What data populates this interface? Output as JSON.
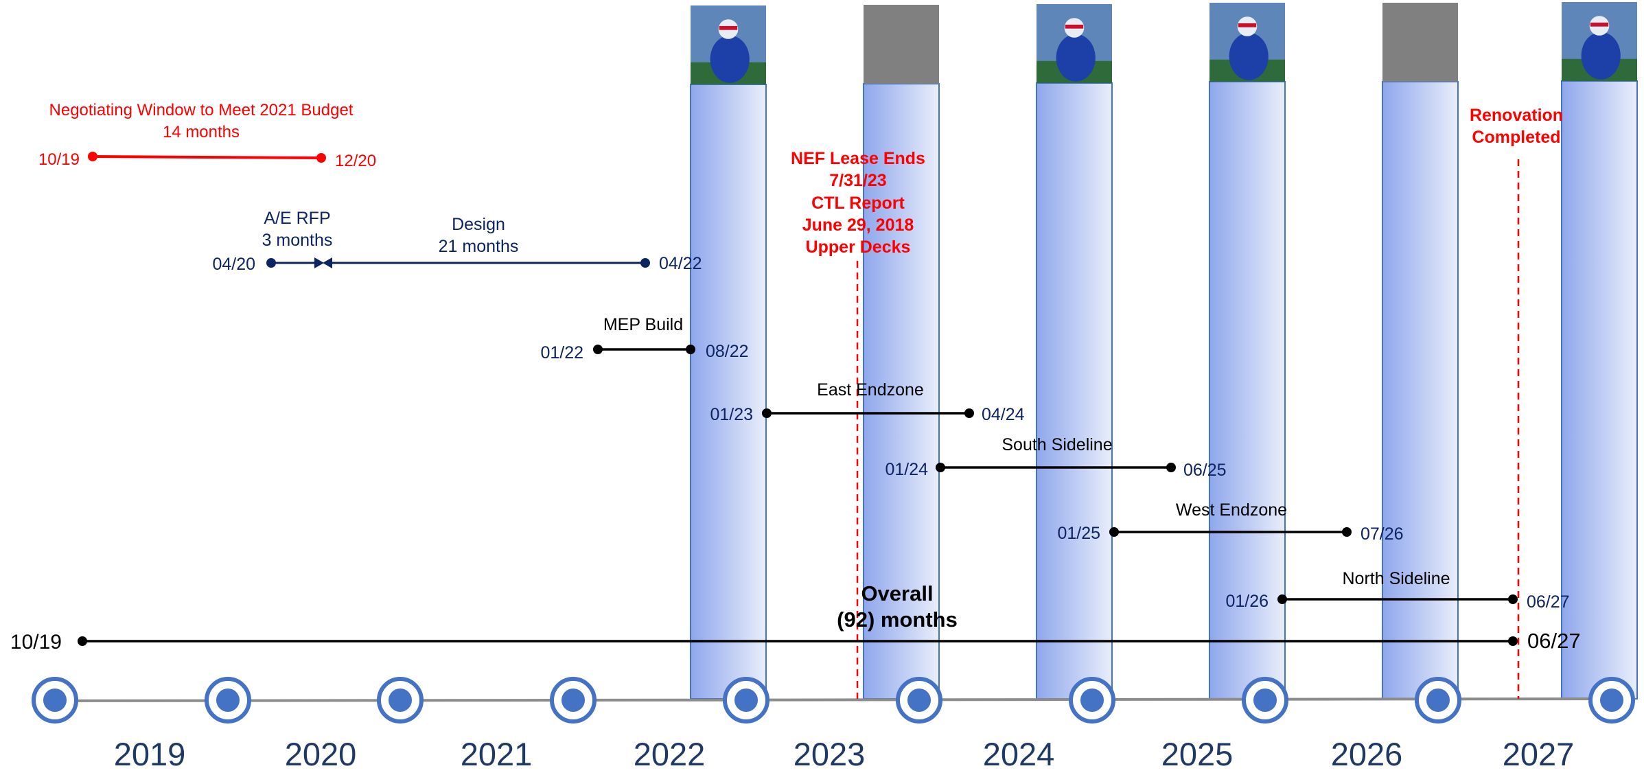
{
  "colors": {
    "navy": "#0d2463",
    "red": "#ff0000",
    "black": "#000000",
    "axis_gray": "#8c8c8c",
    "dot_blue": "#4472c4",
    "season_blue_start": "#8fa7ec",
    "season_blue_end": "#e9eefb",
    "photo_gray": "#808080"
  },
  "years": [
    "2019",
    "2020",
    "2021",
    "2022",
    "2023",
    "2024",
    "2025",
    "2026",
    "2027"
  ],
  "season_columns": [
    {
      "year": "2022",
      "photo": "player-photo"
    },
    {
      "year": "2023",
      "photo": "placeholder"
    },
    {
      "year": "2024",
      "photo": "player-photo"
    },
    {
      "year": "2025",
      "photo": "player-photo"
    },
    {
      "year": "2026",
      "photo": "placeholder"
    },
    {
      "year": "2027",
      "photo": "player-photo"
    }
  ],
  "negotiating_window": {
    "title": "Negotiating Window to Meet 2021 Budget",
    "duration": "14 months",
    "start": "10/19",
    "end": "12/20"
  },
  "ae_rfp": {
    "title": "A/E RFP",
    "duration": "3 months",
    "start": "04/20"
  },
  "design": {
    "title": "Design",
    "duration": "21 months",
    "end": "04/22"
  },
  "mep_build": {
    "title": "MEP Build",
    "start": "01/22",
    "end": "08/22"
  },
  "east_endzone": {
    "title": "East Endzone",
    "start": "01/23",
    "end": "04/24"
  },
  "south_sideline": {
    "title": "South Sideline",
    "start": "01/24",
    "end": "06/25"
  },
  "west_endzone": {
    "title": "West Endzone",
    "start": "01/25",
    "end": "07/26"
  },
  "north_sideline": {
    "title": "North Sideline",
    "start": "01/26",
    "end": "06/27"
  },
  "overall": {
    "line1": "Overall",
    "line2": "(92) months",
    "start": "10/19",
    "end": "06/27"
  },
  "nef_note": [
    "NEF Lease Ends",
    "7/31/23",
    "CTL Report",
    "June 29, 2018",
    "Upper Decks"
  ],
  "renovation_note": [
    "Renovation",
    "Completed"
  ]
}
